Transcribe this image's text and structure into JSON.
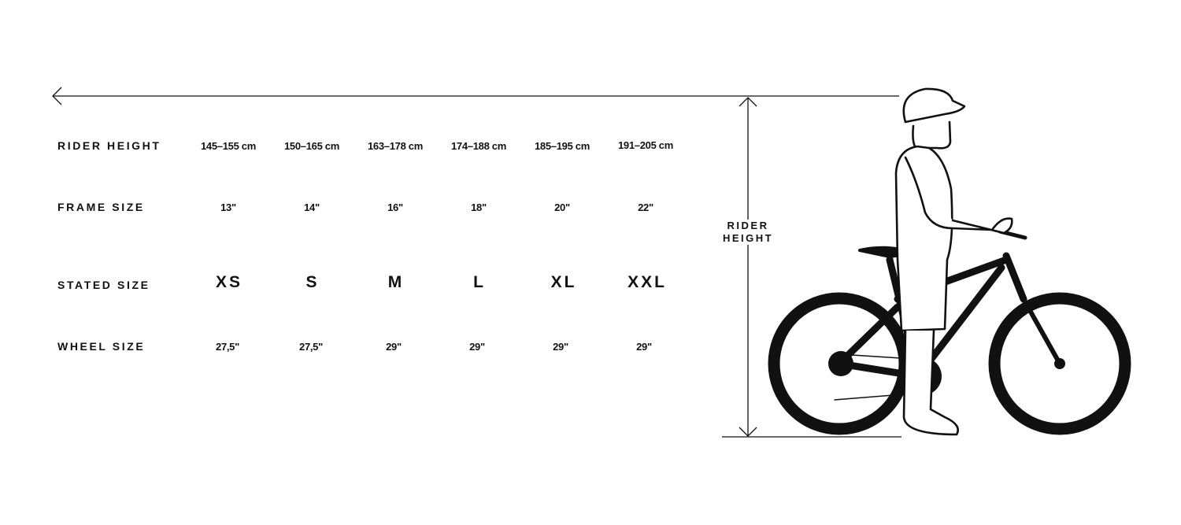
{
  "rows": [
    {
      "label": "RIDER HEIGHT",
      "values": [
        "145–155 cm",
        "150–165 cm",
        "163–178 cm",
        "174–188 cm",
        "185–195 cm",
        "191–205 cm"
      ]
    },
    {
      "label": "FRAME SIZE",
      "values": [
        "13\"",
        "14\"",
        "16\"",
        "18\"",
        "20\"",
        "22\""
      ]
    },
    {
      "label": "STATED SIZE",
      "values": [
        "XS",
        "S",
        "M",
        "L",
        "XL",
        "XXL"
      ]
    },
    {
      "label": "WHEEL SIZE",
      "values": [
        "27,5\"",
        "27,5\"",
        "29\"",
        "29\"",
        "29\"",
        "29\""
      ]
    }
  ],
  "measure": {
    "line1": "RIDER",
    "line2": "HEIGHT"
  },
  "illustration": {
    "subject": "rider-standing-with-bicycle-icon",
    "color": "#111111"
  }
}
